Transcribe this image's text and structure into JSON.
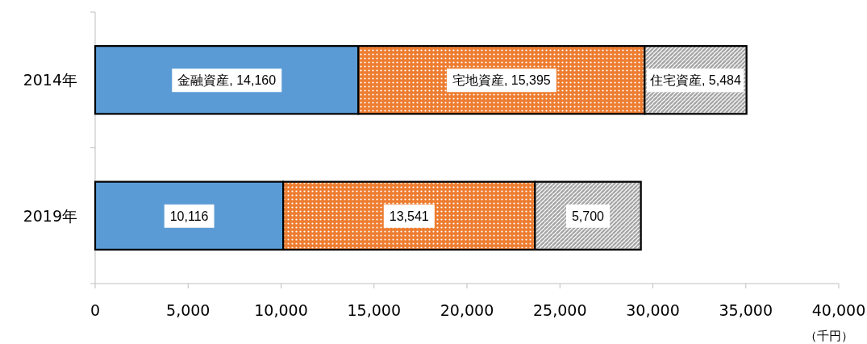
{
  "chart_data": {
    "type": "bar",
    "orientation": "horizontal",
    "stacked": true,
    "categories": [
      "2014年",
      "2019年"
    ],
    "series": [
      {
        "color": "#5b9bd5",
        "values": [
          14160,
          10116
        ],
        "value_labels": [
          "金融資産, 14,160",
          "10,116"
        ]
      },
      {
        "color": "#ed7d31",
        "values": [
          15395,
          13541
        ],
        "value_labels": [
          "宅地資産, 15,395",
          "13,541"
        ]
      },
      {
        "color": "#a5a5a5",
        "values": [
          5484,
          5700
        ],
        "value_labels": [
          "住宅資産, 5,484",
          "5,700"
        ]
      }
    ],
    "xlim": [
      0,
      40000
    ],
    "xticks": [
      {
        "value": 0,
        "label": "0"
      },
      {
        "value": 5000,
        "label": "5,000"
      },
      {
        "value": 10000,
        "label": "10,000"
      },
      {
        "value": 15000,
        "label": "15,000"
      },
      {
        "value": 20000,
        "label": "20,000"
      },
      {
        "value": 25000,
        "label": "25,000"
      },
      {
        "value": 30000,
        "label": "30,000"
      },
      {
        "value": 35000,
        "label": "35,000"
      },
      {
        "value": 40000,
        "label": "40,000"
      }
    ],
    "xlabel": "（千円）",
    "grid": false
  }
}
